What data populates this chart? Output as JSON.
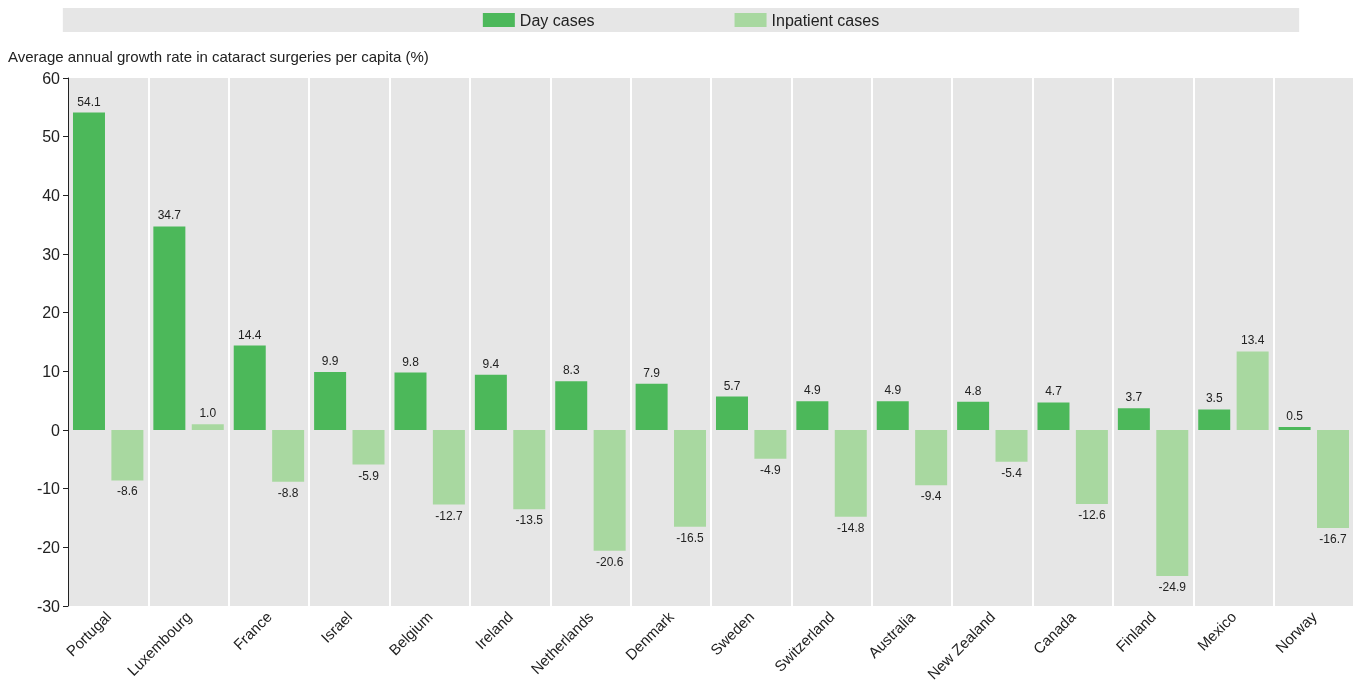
{
  "chart_data": {
    "type": "bar",
    "ylabel": "Average annual growth rate in cataract surgeries per capita (%)",
    "categories": [
      "Portugal",
      "Luxembourg",
      "France",
      "Israel",
      "Belgium",
      "Ireland",
      "Netherlands",
      "Denmark",
      "Sweden",
      "Switzerland",
      "Australia",
      "New Zealand",
      "Canada",
      "Finland",
      "Mexico",
      "Norway"
    ],
    "series": [
      {
        "name": "Day cases",
        "color": "#4cb85a",
        "values": [
          54.1,
          34.7,
          14.4,
          9.9,
          9.8,
          9.4,
          8.3,
          7.9,
          5.7,
          4.9,
          4.9,
          4.8,
          4.7,
          3.7,
          3.5,
          0.5
        ],
        "value_labels": [
          "54.1",
          "34.7",
          "14.4",
          "9.9",
          "9.8",
          "9.4",
          "8.3",
          "7.9",
          "5.7",
          "4.9",
          "4.9",
          "4.8",
          "4.7",
          "3.7",
          "3.5",
          "0.5"
        ]
      },
      {
        "name": "Inpatient cases",
        "color": "#a8d8a0",
        "values": [
          -8.6,
          1.0,
          -8.8,
          -5.9,
          -12.7,
          -13.5,
          -20.6,
          -16.5,
          -4.9,
          -14.8,
          -9.4,
          -5.4,
          -12.6,
          -24.9,
          13.4,
          -16.7
        ],
        "value_labels": [
          "-8.6",
          "1.0",
          "-8.8",
          "-5.9",
          "-12.7",
          "-13.5",
          "-20.6",
          "-16.5",
          "-4.9",
          "-14.8",
          "-9.4",
          "-5.4",
          "-12.6",
          "-24.9",
          "13.4",
          "-16.7"
        ]
      }
    ],
    "ylim": [
      -30,
      60
    ],
    "yticks": [
      -30,
      -20,
      -10,
      0,
      10,
      20,
      30,
      40,
      50,
      60
    ],
    "grid": "x",
    "legend": "top"
  }
}
